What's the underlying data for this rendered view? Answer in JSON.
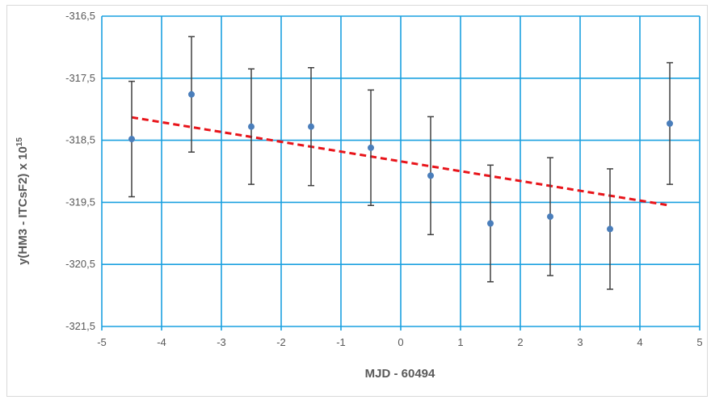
{
  "chart_data": {
    "type": "scatter",
    "xlabel": "MJD - 60494",
    "ylabel_base": "y(HM3 - ITCsF2) x 10",
    "ylabel_exp": "15",
    "xlim": [
      -5,
      5
    ],
    "ylim": [
      -321.5,
      -316.5
    ],
    "x_ticks": [
      -5,
      -4,
      -3,
      -2,
      -1,
      0,
      1,
      2,
      3,
      4,
      5
    ],
    "x_tick_labels": [
      "-5",
      "-4",
      "-3",
      "-2",
      "-1",
      "0",
      "1",
      "2",
      "3",
      "4",
      "5"
    ],
    "y_ticks": [
      -316.5,
      -317.5,
      -318.5,
      -319.5,
      -320.5,
      -321.5
    ],
    "y_tick_labels": [
      "-316,5",
      "-317,5",
      "-318,5",
      "-319,5",
      "-320,5",
      "-321,5"
    ],
    "grid": true,
    "points": [
      {
        "x": -4.5,
        "y": -318.48,
        "err": 0.93
      },
      {
        "x": -3.5,
        "y": -317.76,
        "err": 0.93
      },
      {
        "x": -2.5,
        "y": -318.28,
        "err": 0.93
      },
      {
        "x": -1.5,
        "y": -318.28,
        "err": 0.95
      },
      {
        "x": -0.5,
        "y": -318.62,
        "err": 0.93
      },
      {
        "x": 0.5,
        "y": -319.07,
        "err": 0.95
      },
      {
        "x": 1.5,
        "y": -319.84,
        "err": 0.94
      },
      {
        "x": 2.5,
        "y": -319.73,
        "err": 0.95
      },
      {
        "x": 3.5,
        "y": -319.93,
        "err": 0.97
      },
      {
        "x": 4.5,
        "y": -318.23,
        "err": 0.98
      }
    ],
    "trendline": {
      "x": [
        -4.5,
        4.5
      ],
      "y": [
        -318.13,
        -319.55
      ],
      "style": "dashed"
    },
    "colors": {
      "marker": "#4a7ebb",
      "trend": "#e8141a",
      "grid": "#1aa0e0",
      "error_bar": "#404040",
      "text": "#595959"
    }
  }
}
